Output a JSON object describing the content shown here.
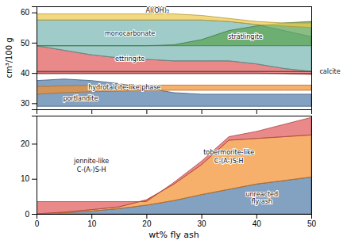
{
  "chart_data": [
    {
      "type": "area",
      "x": [
        0,
        5,
        10,
        15,
        20,
        25,
        30,
        35,
        40,
        45,
        50
      ],
      "xlim": [
        0,
        50
      ],
      "xticks": [
        0,
        10,
        20,
        30,
        40,
        50
      ],
      "ylim": [
        28,
        62
      ],
      "yticks": [
        30,
        40,
        50,
        60
      ],
      "y_label": "cm³/100 g",
      "tick_labels": "y",
      "series": [
        {
          "values": [
            37.5,
            38.0,
            37.5,
            36.5,
            35.0,
            33.5,
            33.0,
            33.0,
            33.0,
            33.0,
            33.0
          ],
          "bottom": [
            29.0,
            29.0,
            29.0,
            29.0,
            29.0,
            29.0,
            29.0,
            29.0,
            29.0,
            29.0,
            29.0
          ]
        },
        {
          "values": [
            35.5,
            35.8,
            35.9,
            36.0,
            36.0,
            36.0,
            36.0,
            36.0,
            36.0,
            36.0,
            36.0
          ],
          "bottom": [
            33.0,
            33.5,
            33.8,
            34.0,
            34.2,
            34.3,
            34.3,
            34.3,
            34.3,
            34.3,
            34.3
          ]
        },
        {
          "values": [
            49.0,
            47.5,
            46.0,
            45.0,
            44.5,
            44.0,
            44.0,
            44.0,
            43.0,
            41.5,
            40.5
          ],
          "bottom": [
            40.0,
            40.0,
            40.0,
            40.0,
            40.0,
            40.0,
            40.0,
            40.0,
            40.0,
            39.8,
            39.5
          ]
        },
        {
          "values": [
            57.5,
            57.5,
            57.5,
            57.5,
            57.5,
            57.5,
            57.5,
            57.0,
            56.0,
            54.0,
            52.0
          ],
          "bottom": [
            49.0,
            47.5,
            46.0,
            45.0,
            44.5,
            44.0,
            44.0,
            44.0,
            43.0,
            41.5,
            40.5
          ]
        },
        {
          "values": [
            49.0,
            49.0,
            49.0,
            49.0,
            49.0,
            49.3,
            51.0,
            54.0,
            55.5,
            56.5,
            57.0
          ],
          "bottom": [
            49.0,
            49.0,
            49.0,
            49.0,
            49.0,
            49.0,
            49.0,
            49.0,
            49.0,
            49.0,
            49.0
          ]
        },
        {
          "values": [
            59.5,
            59.5,
            59.5,
            59.5,
            59.5,
            59.5,
            59.0,
            58.0,
            57.0,
            56.5,
            56.5
          ],
          "bottom": [
            57.5,
            57.5,
            57.5,
            57.5,
            57.5,
            57.5,
            57.5,
            57.0,
            56.0,
            55.5,
            55.0
          ]
        }
      ],
      "reference_lines": [
        40.5,
        39.8
      ],
      "annotations": [
        {
          "text": "Al(OH)₃",
          "x": 22,
          "y": 60.5
        },
        {
          "text": "monocarbonate",
          "x": 17,
          "y": 53.0
        },
        {
          "text": "ettringite",
          "x": 17,
          "y": 44.5
        },
        {
          "text": "portlandite",
          "x": 8,
          "y": 31.5
        },
        {
          "text": "hydrotalcite-like phase",
          "x": 16,
          "y": 35.2
        },
        {
          "text": "strätlingite",
          "x": 38,
          "y": 52.0
        },
        {
          "text": "calcite",
          "x": 51.5,
          "y": 40.5
        }
      ]
    },
    {
      "type": "area",
      "x": [
        0,
        5,
        10,
        15,
        20,
        25,
        30,
        35,
        40,
        45,
        50
      ],
      "xlim": [
        0,
        50
      ],
      "xticks": [
        0,
        10,
        20,
        30,
        40,
        50
      ],
      "ylim": [
        0,
        28
      ],
      "yticks": [
        0,
        10,
        20
      ],
      "x_label": "wt% fly ash",
      "series": [
        {
          "values": [
            0,
            0.3,
            0.8,
            1.5,
            2.5,
            3.8,
            5.5,
            7.0,
            8.5,
            9.5,
            10.5
          ],
          "bottom": [
            0,
            0,
            0,
            0,
            0,
            0,
            0,
            0,
            0,
            0,
            0
          ]
        },
        {
          "values": [
            0,
            0.5,
            1.2,
            2.0,
            4.0,
            8.5,
            14.0,
            21.0,
            21.5,
            22.0,
            22.5
          ],
          "bottom": [
            0,
            0.3,
            0.8,
            1.5,
            2.5,
            3.8,
            5.5,
            7.0,
            8.5,
            9.5,
            10.5
          ]
        },
        {
          "values": [
            3.5,
            3.5,
            3.5,
            3.5,
            3.5,
            9.0,
            15.0,
            22.0,
            23.5,
            25.5,
            27.5
          ],
          "bottom": [
            0,
            0.5,
            1.2,
            2.0,
            4.0,
            8.5,
            14.0,
            21.0,
            21.5,
            22.0,
            22.5
          ]
        }
      ],
      "annotations": [
        {
          "text": "jennite-like",
          "x": 10,
          "y": 15
        },
        {
          "text": "C-(A-)S-H",
          "x": 10,
          "y": 12.5
        },
        {
          "text": "tobermorite-like",
          "x": 35,
          "y": 17.5
        },
        {
          "text": "C-(A-)S-H",
          "x": 35,
          "y": 15.0
        },
        {
          "text": "unreacted",
          "x": 41,
          "y": 5.5
        },
        {
          "text": "fly ash",
          "x": 41,
          "y": 3.5
        }
      ]
    }
  ]
}
